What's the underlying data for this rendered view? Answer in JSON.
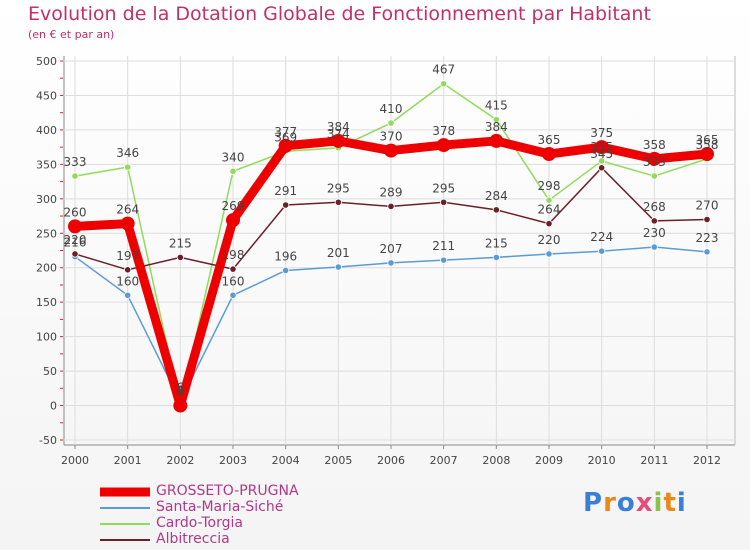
{
  "chart_data": {
    "type": "line",
    "title": "Evolution de la Dotation Globale de Fonctionnement par Habitant",
    "subtitle": "(en € et par an)",
    "categories": [
      "2000",
      "2001",
      "2002",
      "2003",
      "2004",
      "2005",
      "2006",
      "2007",
      "2008",
      "2009",
      "2010",
      "2011",
      "2012"
    ],
    "ylim": [
      -50,
      500
    ],
    "yticks": [
      -50,
      0,
      50,
      100,
      150,
      200,
      250,
      300,
      350,
      400,
      450,
      500
    ],
    "grid": true,
    "legend_position": "bottom-left",
    "series": [
      {
        "name": "Santa-Maria-Siché",
        "color": "#5b9bd5",
        "values": [
          216,
          160,
          6,
          160,
          196,
          201,
          207,
          211,
          215,
          220,
          224,
          230,
          223
        ]
      },
      {
        "name": "Cardo-Torgia",
        "color": "#90dc5a",
        "values": [
          333,
          346,
          0,
          340,
          369,
          374,
          410,
          467,
          415,
          298,
          355,
          333,
          358
        ]
      },
      {
        "name": "Albitreccia",
        "color": "#6b1f2a",
        "values": [
          220,
          197,
          215,
          198,
          291,
          295,
          289,
          295,
          284,
          264,
          345,
          268,
          270
        ]
      },
      {
        "name": "GROSSETO-PRUGNA",
        "color": "#ee0000",
        "values": [
          260,
          264,
          0,
          269,
          377,
          384,
          370,
          378,
          384,
          365,
          375,
          358,
          365
        ]
      }
    ],
    "legend_order": [
      "GROSSETO-PRUGNA",
      "Santa-Maria-Siché",
      "Cardo-Torgia",
      "Albitreccia"
    ]
  },
  "branding": {
    "logo_text": "Proxiti",
    "letter_colors": [
      "#3a7fd5",
      "#e8891b",
      "#3a7fd5",
      "#e84b7a",
      "#8bc34a",
      "#e8891b",
      "#3a7fd5"
    ]
  }
}
